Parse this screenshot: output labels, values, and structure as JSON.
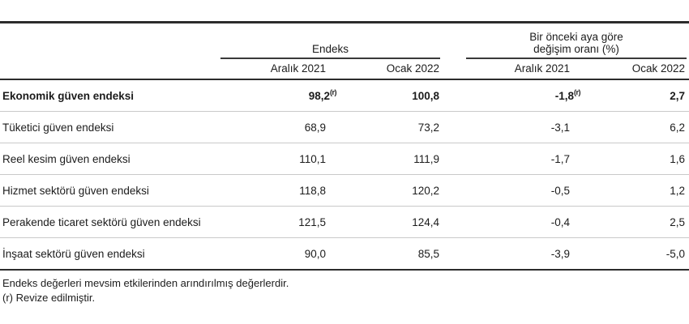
{
  "page": {
    "footnotes": [
      "Endeks değerleri mevsim etkilerinden arındırılmış değerlerdir.",
      "(r) Revize edilmiştir."
    ]
  },
  "table": {
    "groups": [
      {
        "label": "Endeks"
      },
      {
        "label": "Bir önceki aya göre değişim oranı (%)"
      }
    ],
    "columns": [
      "Aralık 2021",
      "Ocak 2022",
      "Aralık 2021",
      "Ocak 2022"
    ],
    "rows": [
      {
        "label": "Ekonomik güven endeksi",
        "bold": true,
        "values": [
          {
            "v": "98,2",
            "sup": "(r)"
          },
          {
            "v": "100,8"
          },
          {
            "v": "-1,8",
            "sup": "(r)"
          },
          {
            "v": "2,7"
          }
        ]
      },
      {
        "label": "Tüketici güven endeksi",
        "bold": false,
        "values": [
          {
            "v": "68,9"
          },
          {
            "v": "73,2"
          },
          {
            "v": "-3,1"
          },
          {
            "v": "6,2"
          }
        ]
      },
      {
        "label": "Reel kesim güven endeksi",
        "bold": false,
        "values": [
          {
            "v": "110,1"
          },
          {
            "v": "111,9"
          },
          {
            "v": "-1,7"
          },
          {
            "v": "1,6"
          }
        ]
      },
      {
        "label": "Hizmet sektörü güven endeksi",
        "bold": false,
        "values": [
          {
            "v": "118,8"
          },
          {
            "v": "120,2"
          },
          {
            "v": "-0,5"
          },
          {
            "v": "1,2"
          }
        ]
      },
      {
        "label": "Perakende ticaret sektörü güven endeksi",
        "bold": false,
        "values": [
          {
            "v": "121,5"
          },
          {
            "v": "124,4"
          },
          {
            "v": "-0,4"
          },
          {
            "v": "2,5"
          }
        ]
      },
      {
        "label": "İnşaat sektörü güven endeksi",
        "bold": false,
        "values": [
          {
            "v": "90,0"
          },
          {
            "v": "85,5"
          },
          {
            "v": "-3,9"
          },
          {
            "v": "-5,0"
          }
        ]
      }
    ]
  },
  "chart_data": {
    "type": "table",
    "title": "",
    "column_groups": [
      "Endeks",
      "Bir önceki aya göre değişim oranı (%)"
    ],
    "columns": [
      "Endeks Aralık 2021",
      "Endeks Ocak 2022",
      "Değişim Aralık 2021 (%)",
      "Değişim Ocak 2022 (%)"
    ],
    "rows": [
      {
        "label": "Ekonomik güven endeksi",
        "values": [
          98.2,
          100.8,
          -1.8,
          2.7
        ],
        "note": "Aralık 2021 değerleri revize (r)"
      },
      {
        "label": "Tüketici güven endeksi",
        "values": [
          68.9,
          73.2,
          -3.1,
          6.2
        ]
      },
      {
        "label": "Reel kesim güven endeksi",
        "values": [
          110.1,
          111.9,
          -1.7,
          1.6
        ]
      },
      {
        "label": "Hizmet sektörü güven endeksi",
        "values": [
          118.8,
          120.2,
          -0.5,
          1.2
        ]
      },
      {
        "label": "Perakende ticaret sektörü güven endeksi",
        "values": [
          121.5,
          124.4,
          -0.4,
          2.5
        ]
      },
      {
        "label": "İnşaat sektörü güven endeksi",
        "values": [
          90.0,
          85.5,
          -3.9,
          -5.0
        ]
      }
    ]
  },
  "colors": {
    "rule_dark": "#2c2c2c",
    "rule_light": "#c9c9c9",
    "text": "#1c1c1c",
    "background": "#ffffff"
  }
}
